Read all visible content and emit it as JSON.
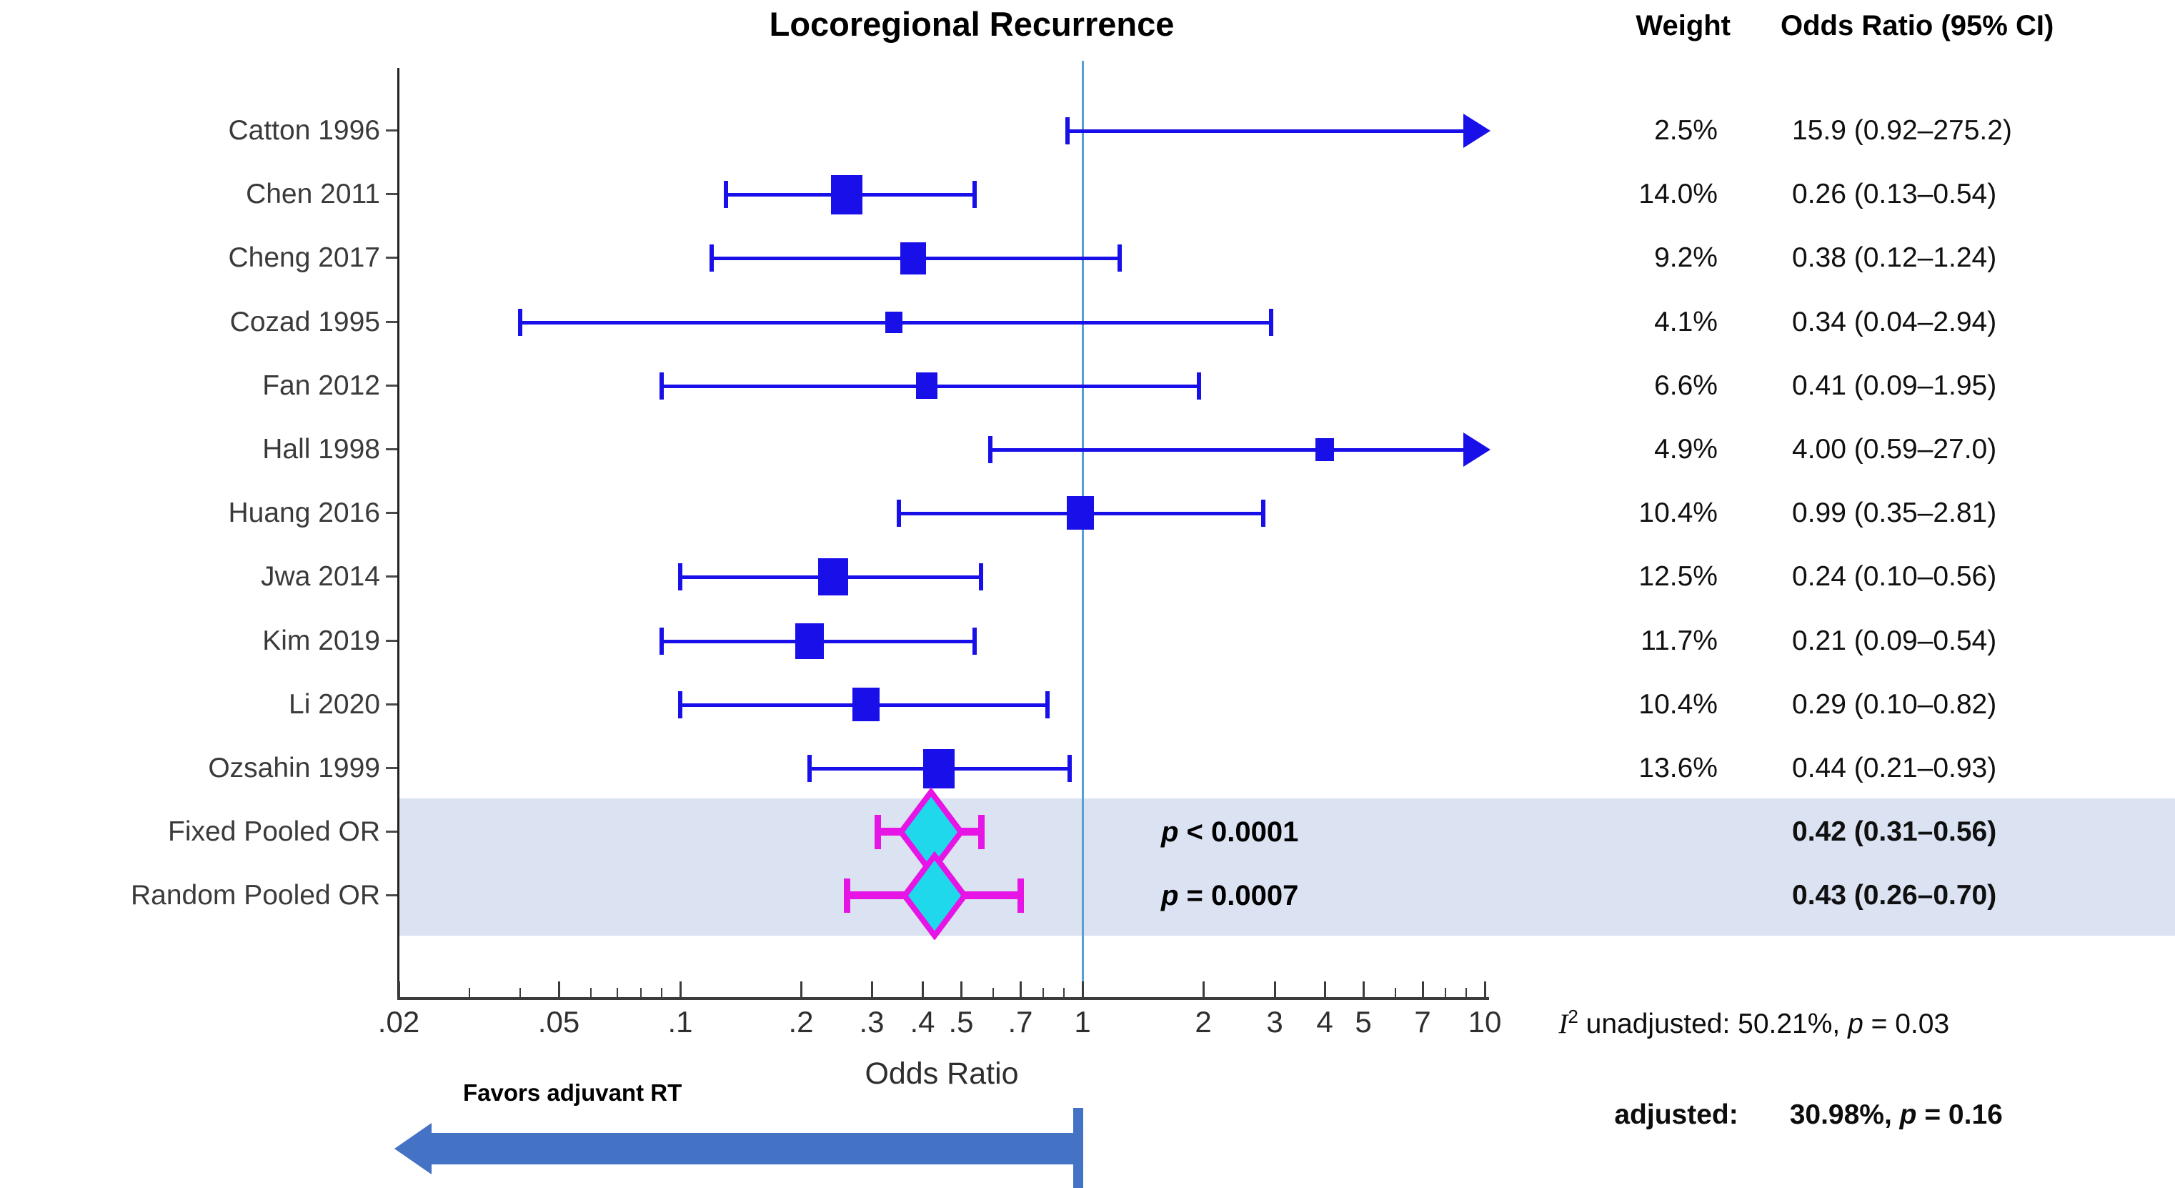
{
  "title": "Locoregional Recurrence",
  "columns": {
    "weight": "Weight",
    "or": "Odds Ratio (95% CI)"
  },
  "favors_label": "Favors adjuvant RT",
  "heterogeneity": {
    "i_symbol": "I",
    "i_exponent": "2",
    "line1_text": " unadjusted: 50.21%, ",
    "line1_p": "p",
    "line1_value": " = 0.03",
    "line2_label": "adjusted:",
    "line2_text": "30.98%, ",
    "line2_p": "p",
    "line2_value": " = 0.16"
  },
  "colors": {
    "study_marker": "#190fe8",
    "reference_line": "#57a0d6",
    "pooled_band": "#dbe2f2",
    "diamond_fill": "#1fd8ec",
    "diamond_stroke": "#e615e6",
    "favors_arrow": "#4472c4",
    "axis": "#3b3b3b",
    "tick_text": "#2f2f2f",
    "label_text": "#3a3a3a",
    "value_text": "#101010"
  },
  "chart_data": {
    "type": "forest",
    "x_scale": "log",
    "xlabel": "Odds Ratio",
    "x_range": [
      0.02,
      10
    ],
    "reference_line": 1,
    "major_ticks": [
      {
        "v": 0.02,
        "label": ".02"
      },
      {
        "v": 0.05,
        "label": ".05"
      },
      {
        "v": 0.1,
        "label": ".1"
      },
      {
        "v": 0.2,
        "label": ".2"
      },
      {
        "v": 0.3,
        "label": ".3"
      },
      {
        "v": 0.4,
        "label": ".4"
      },
      {
        "v": 0.5,
        "label": ".5"
      },
      {
        "v": 0.7,
        "label": ".7"
      },
      {
        "v": 1,
        "label": "1"
      },
      {
        "v": 2,
        "label": "2"
      },
      {
        "v": 3,
        "label": "3"
      },
      {
        "v": 4,
        "label": "4"
      },
      {
        "v": 5,
        "label": "5"
      },
      {
        "v": 7,
        "label": "7"
      },
      {
        "v": 10,
        "label": "10"
      }
    ],
    "minor_ticks": [
      0.03,
      0.04,
      0.06,
      0.07,
      0.08,
      0.09,
      0.6,
      0.8,
      0.9,
      6,
      8,
      9
    ],
    "rows": [
      {
        "label": "Catton 1996",
        "weight_label": "2.5%",
        "or": 15.9,
        "ci_low": 0.92,
        "ci_high": 275.2,
        "or_label": "15.9 (0.92–275.2)",
        "pooled": false
      },
      {
        "label": "Chen 2011",
        "weight_label": "14.0%",
        "or": 0.26,
        "ci_low": 0.13,
        "ci_high": 0.54,
        "or_label": "0.26 (0.13–0.54)",
        "pooled": false,
        "weight_pct": 14.0
      },
      {
        "label": "Cheng 2017",
        "weight_label": "9.2%",
        "or": 0.38,
        "ci_low": 0.12,
        "ci_high": 1.24,
        "or_label": "0.38 (0.12–1.24)",
        "pooled": false,
        "weight_pct": 9.2
      },
      {
        "label": "Cozad 1995",
        "weight_label": "4.1%",
        "or": 0.34,
        "ci_low": 0.04,
        "ci_high": 2.94,
        "or_label": "0.34 (0.04–2.94)",
        "pooled": false,
        "weight_pct": 4.1
      },
      {
        "label": "Fan 2012",
        "weight_label": "6.6%",
        "or": 0.41,
        "ci_low": 0.09,
        "ci_high": 1.95,
        "or_label": "0.41 (0.09–1.95)",
        "pooled": false,
        "weight_pct": 6.6
      },
      {
        "label": "Hall 1998",
        "weight_label": "4.9%",
        "or": 4.0,
        "ci_low": 0.59,
        "ci_high": 27.0,
        "or_label": "4.00 (0.59–27.0)",
        "pooled": false,
        "weight_pct": 4.9
      },
      {
        "label": "Huang 2016",
        "weight_label": "10.4%",
        "or": 0.99,
        "ci_low": 0.35,
        "ci_high": 2.81,
        "or_label": "0.99 (0.35–2.81)",
        "pooled": false,
        "weight_pct": 10.4
      },
      {
        "label": "Jwa 2014",
        "weight_label": "12.5%",
        "or": 0.24,
        "ci_low": 0.1,
        "ci_high": 0.56,
        "or_label": "0.24 (0.10–0.56)",
        "pooled": false,
        "weight_pct": 12.5
      },
      {
        "label": "Kim 2019",
        "weight_label": "11.7%",
        "or": 0.21,
        "ci_low": 0.09,
        "ci_high": 0.54,
        "or_label": "0.21 (0.09–0.54)",
        "pooled": false,
        "weight_pct": 11.7
      },
      {
        "label": "Li 2020",
        "weight_label": "10.4%",
        "or": 0.29,
        "ci_low": 0.1,
        "ci_high": 0.82,
        "or_label": "0.29 (0.10–0.82)",
        "pooled": false,
        "weight_pct": 10.4
      },
      {
        "label": "Ozsahin 1999",
        "weight_label": "13.6%",
        "or": 0.44,
        "ci_low": 0.21,
        "ci_high": 0.93,
        "or_label": "0.44 (0.21–0.93)",
        "pooled": false,
        "weight_pct": 13.6
      },
      {
        "label": "Fixed Pooled OR",
        "weight_label": "",
        "or": 0.42,
        "ci_low": 0.31,
        "ci_high": 0.56,
        "or_label": "0.42 (0.31–0.56)",
        "pooled": true,
        "p_prefix": "p",
        "p_text": " < 0.0001"
      },
      {
        "label": "Random Pooled OR",
        "weight_label": "",
        "or": 0.43,
        "ci_low": 0.26,
        "ci_high": 0.7,
        "or_label": "0.43 (0.26–0.70)",
        "pooled": true,
        "p_prefix": "p",
        "p_text": " = 0.0007"
      }
    ]
  }
}
